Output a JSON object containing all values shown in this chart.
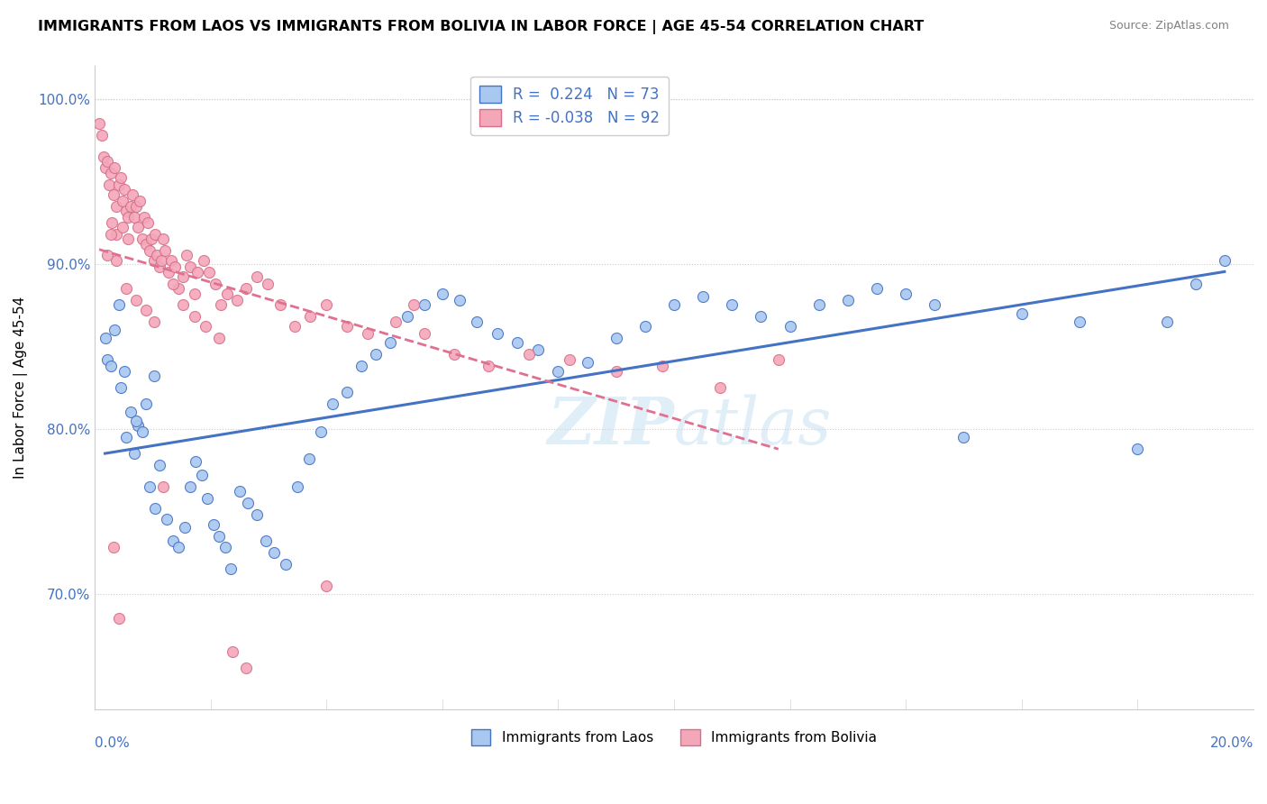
{
  "title": "IMMIGRANTS FROM LAOS VS IMMIGRANTS FROM BOLIVIA IN LABOR FORCE | AGE 45-54 CORRELATION CHART",
  "source": "Source: ZipAtlas.com",
  "ylabel": "In Labor Force | Age 45-54",
  "xlim": [
    0.0,
    20.0
  ],
  "ylim": [
    63.0,
    102.0
  ],
  "yticks": [
    70.0,
    80.0,
    90.0,
    100.0
  ],
  "ytick_labels": [
    "70.0%",
    "80.0%",
    "90.0%",
    "100.0%"
  ],
  "laos_R": 0.224,
  "laos_N": 73,
  "bolivia_R": -0.038,
  "bolivia_N": 92,
  "laos_color": "#A8C8F0",
  "bolivia_color": "#F4A7B9",
  "laos_edge_color": "#4472C4",
  "bolivia_edge_color": "#D4708A",
  "laos_line_color": "#4472C4",
  "bolivia_line_color": "#E07090",
  "laos_x": [
    0.18,
    0.22,
    0.28,
    0.35,
    0.42,
    0.55,
    0.62,
    0.68,
    0.75,
    0.82,
    0.95,
    1.05,
    1.12,
    1.25,
    1.35,
    1.45,
    1.55,
    1.65,
    1.75,
    1.85,
    1.95,
    2.05,
    2.15,
    2.25,
    2.35,
    2.5,
    2.65,
    2.8,
    2.95,
    3.1,
    3.3,
    3.5,
    3.7,
    3.9,
    4.1,
    4.35,
    4.6,
    4.85,
    5.1,
    5.4,
    5.7,
    6.0,
    6.3,
    6.6,
    6.95,
    7.3,
    7.65,
    8.0,
    8.5,
    9.0,
    9.5,
    10.0,
    10.5,
    11.0,
    11.5,
    12.0,
    12.5,
    13.0,
    13.5,
    14.0,
    14.5,
    15.0,
    16.0,
    17.0,
    18.0,
    18.5,
    19.0,
    19.5,
    0.45,
    0.52,
    0.72,
    0.88,
    1.02
  ],
  "laos_y": [
    85.5,
    84.2,
    83.8,
    86.0,
    87.5,
    79.5,
    81.0,
    78.5,
    80.2,
    79.8,
    76.5,
    75.2,
    77.8,
    74.5,
    73.2,
    72.8,
    74.0,
    76.5,
    78.0,
    77.2,
    75.8,
    74.2,
    73.5,
    72.8,
    71.5,
    76.2,
    75.5,
    74.8,
    73.2,
    72.5,
    71.8,
    76.5,
    78.2,
    79.8,
    81.5,
    82.2,
    83.8,
    84.5,
    85.2,
    86.8,
    87.5,
    88.2,
    87.8,
    86.5,
    85.8,
    85.2,
    84.8,
    83.5,
    84.0,
    85.5,
    86.2,
    87.5,
    88.0,
    87.5,
    86.8,
    86.2,
    87.5,
    87.8,
    88.5,
    88.2,
    87.5,
    79.5,
    87.0,
    86.5,
    78.8,
    86.5,
    88.8,
    90.2,
    82.5,
    83.5,
    80.5,
    81.5,
    83.2
  ],
  "bolivia_x": [
    0.08,
    0.12,
    0.15,
    0.18,
    0.22,
    0.25,
    0.28,
    0.32,
    0.35,
    0.38,
    0.42,
    0.45,
    0.48,
    0.52,
    0.55,
    0.58,
    0.62,
    0.65,
    0.68,
    0.72,
    0.75,
    0.78,
    0.82,
    0.85,
    0.88,
    0.92,
    0.95,
    0.98,
    1.02,
    1.05,
    1.08,
    1.12,
    1.15,
    1.18,
    1.22,
    1.28,
    1.32,
    1.38,
    1.45,
    1.52,
    1.58,
    1.65,
    1.72,
    1.78,
    1.88,
    1.98,
    2.08,
    2.18,
    2.28,
    2.45,
    2.62,
    2.8,
    2.98,
    3.2,
    3.45,
    3.72,
    4.0,
    4.35,
    4.72,
    5.2,
    5.7,
    6.2,
    6.8,
    7.5,
    8.2,
    9.0,
    9.8,
    10.8,
    11.8,
    5.5,
    4.0,
    0.3,
    0.38,
    0.48,
    0.58,
    0.38,
    0.28,
    0.22,
    0.32,
    0.55,
    0.72,
    0.88,
    1.02,
    1.18,
    1.35,
    1.52,
    1.72,
    1.92,
    2.15,
    2.38,
    2.62,
    0.42
  ],
  "bolivia_y": [
    98.5,
    97.8,
    96.5,
    95.8,
    96.2,
    94.8,
    95.5,
    94.2,
    95.8,
    93.5,
    94.8,
    95.2,
    93.8,
    94.5,
    93.2,
    92.8,
    93.5,
    94.2,
    92.8,
    93.5,
    92.2,
    93.8,
    91.5,
    92.8,
    91.2,
    92.5,
    90.8,
    91.5,
    90.2,
    91.8,
    90.5,
    89.8,
    90.2,
    91.5,
    90.8,
    89.5,
    90.2,
    89.8,
    88.5,
    89.2,
    90.5,
    89.8,
    88.2,
    89.5,
    90.2,
    89.5,
    88.8,
    87.5,
    88.2,
    87.8,
    88.5,
    89.2,
    88.8,
    87.5,
    86.2,
    86.8,
    87.5,
    86.2,
    85.8,
    86.5,
    85.8,
    84.5,
    83.8,
    84.5,
    84.2,
    83.5,
    83.8,
    82.5,
    84.2,
    87.5,
    70.5,
    92.5,
    91.8,
    92.2,
    91.5,
    90.2,
    91.8,
    90.5,
    72.8,
    88.5,
    87.8,
    87.2,
    86.5,
    76.5,
    88.8,
    87.5,
    86.8,
    86.2,
    85.5,
    66.5,
    65.5,
    68.5
  ]
}
